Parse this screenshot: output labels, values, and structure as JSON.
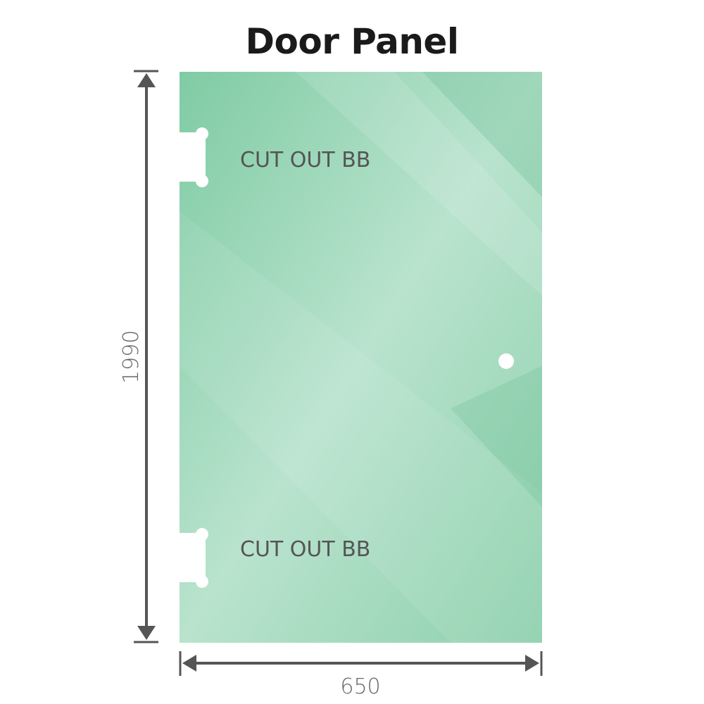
{
  "title": "Door Panel",
  "panel": {
    "color": "#86cda8",
    "cutouts": [
      {
        "label": "CUT OUT BB"
      },
      {
        "label": "CUT OUT BB"
      }
    ],
    "handle_hole": true
  },
  "dimensions": {
    "height": "1990",
    "width": "650"
  }
}
